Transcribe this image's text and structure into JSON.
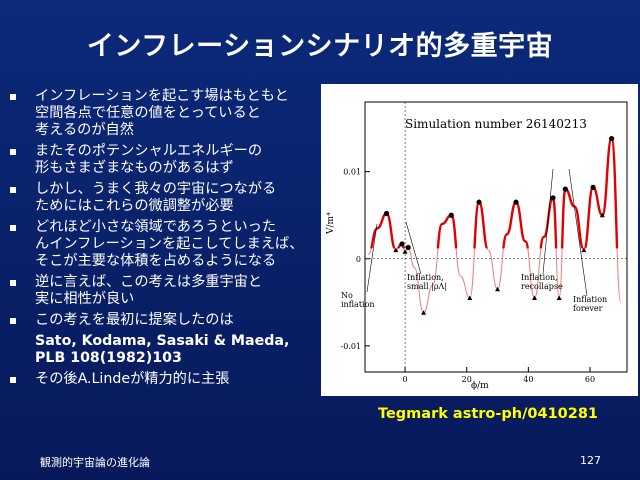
{
  "slide": {
    "title": "インフレーションシナリオ的多重宇宙",
    "bullets": [
      {
        "lines": [
          "インフレーションを起こす場はもともと",
          "空間各点で任意の値をとっていると",
          "考えるのが自然"
        ]
      },
      {
        "lines": [
          "またそのポテンシャルエネルギーの",
          "形もさまざまなものがあるはず"
        ]
      },
      {
        "lines": [
          "しかし、うまく我々の宇宙につながる",
          "ためにはこれらの微調整が必要"
        ]
      },
      {
        "lines": [
          "どれほど小さな領域であろうといった",
          "んインフレーションを起こしてしまえば、",
          "そこが主要な体積を占めるようになる"
        ]
      },
      {
        "lines": [
          "逆に言えば、この考えは多重宇宙と",
          "実に相性が良い"
        ]
      },
      {
        "lines": [
          "この考えを最初に提案したのは"
        ]
      }
    ],
    "authors": [
      "Sato, Kodama, Sasaki & Maeda,",
      "PLB 108(1982)103"
    ],
    "last_bullet": "その後A.Lindeが精力的に主張",
    "caption": "Tegmark astro-ph/0410281",
    "footer_left": "観測的宇宙論の進化論",
    "page_number": "127"
  },
  "figure": {
    "plot_title": "Simulation number 26140213",
    "ylabel": "V/m⁴",
    "xlabel": "ϕ/m",
    "yticks": [
      "0.01",
      "0",
      "-0.01"
    ],
    "xticks": [
      "0",
      "20",
      "40",
      "60"
    ],
    "annotations": {
      "no_inflation": [
        "No",
        "inflation"
      ],
      "inflation_small": [
        "Inflation,",
        "small |ρΛ|"
      ],
      "inflation_recollapse": [
        "Inflation,",
        "recollapse"
      ],
      "inflation_forever": [
        "Inflation",
        "forever"
      ]
    },
    "colors": {
      "inflating": "#e00000",
      "curve": "#f08080",
      "axis": "#000000"
    }
  },
  "chart_data": {
    "type": "line",
    "title": "Simulation number 26140213",
    "xlabel": "ϕ/m",
    "ylabel": "V/m⁴",
    "xlim": [
      -13,
      72
    ],
    "ylim": [
      -0.013,
      0.018
    ],
    "x": [
      -12,
      -9,
      -6,
      -3,
      -1,
      0,
      1,
      3,
      6,
      9,
      12,
      15,
      18,
      21,
      24,
      27,
      30,
      33,
      36,
      39,
      42,
      45,
      48,
      50,
      52,
      55,
      58,
      61,
      64,
      67,
      70
    ],
    "series": [
      {
        "values": [
          0.0005,
          0.0035,
          0.0052,
          0.001,
          0.0017,
          0.0008,
          0.0013,
          -0.001,
          -0.0062,
          -0.003,
          0.004,
          0.005,
          -0.002,
          -0.0045,
          0.0065,
          0.001,
          -0.0035,
          0.0028,
          0.0065,
          0.002,
          -0.0045,
          0.0025,
          0.007,
          -0.0045,
          0.008,
          0.006,
          0.001,
          0.0082,
          0.005,
          0.0138,
          -0.005
        ]
      }
    ],
    "grid": false
  }
}
